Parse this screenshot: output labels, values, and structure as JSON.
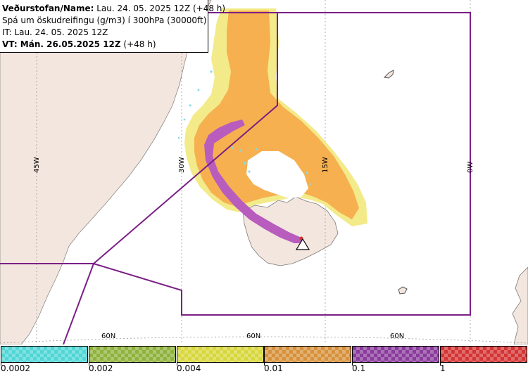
{
  "header": {
    "line1_bold": "Veðurstofan/Name:",
    "line1_rest": " Lau. 24. 05. 2025 12Z (+48 h)",
    "line2": "Spá um öskudreifingu (g/m3) í 300hPa (30000ft)",
    "line3": "IT: Lau. 24. 05. 2025 12Z",
    "line4_bold": "VT: Mán. 26.05.2025 12Z",
    "line4_rest": " (+48 h)"
  },
  "map": {
    "longitude_labels": [
      "45W",
      "30W",
      "15W",
      "0W"
    ],
    "latitude_labels": [
      "60N",
      "60N",
      "60N"
    ],
    "colors": {
      "land": "#f3e6de",
      "sea": "#ffffff",
      "orange": "#f6b04f",
      "light_orange": "#f8d089",
      "yellow": "#f3ea8a",
      "purple": "#b85cbd",
      "boundary": "#7b1f86"
    },
    "volcano_icon": "warning-triangle-icon"
  },
  "legend": {
    "swatches": [
      {
        "name": "cyan",
        "color": "#4fd6d6"
      },
      {
        "name": "olive-green",
        "color": "#8fb23b"
      },
      {
        "name": "yellow",
        "color": "#d7d73b"
      },
      {
        "name": "orange",
        "color": "#d7913b"
      },
      {
        "name": "purple",
        "color": "#8a3b9c"
      },
      {
        "name": "red",
        "color": "#d43434"
      }
    ],
    "tick_labels": [
      "0.0002",
      "0.002",
      "0.004",
      "0.01",
      "0.1",
      "1"
    ]
  }
}
